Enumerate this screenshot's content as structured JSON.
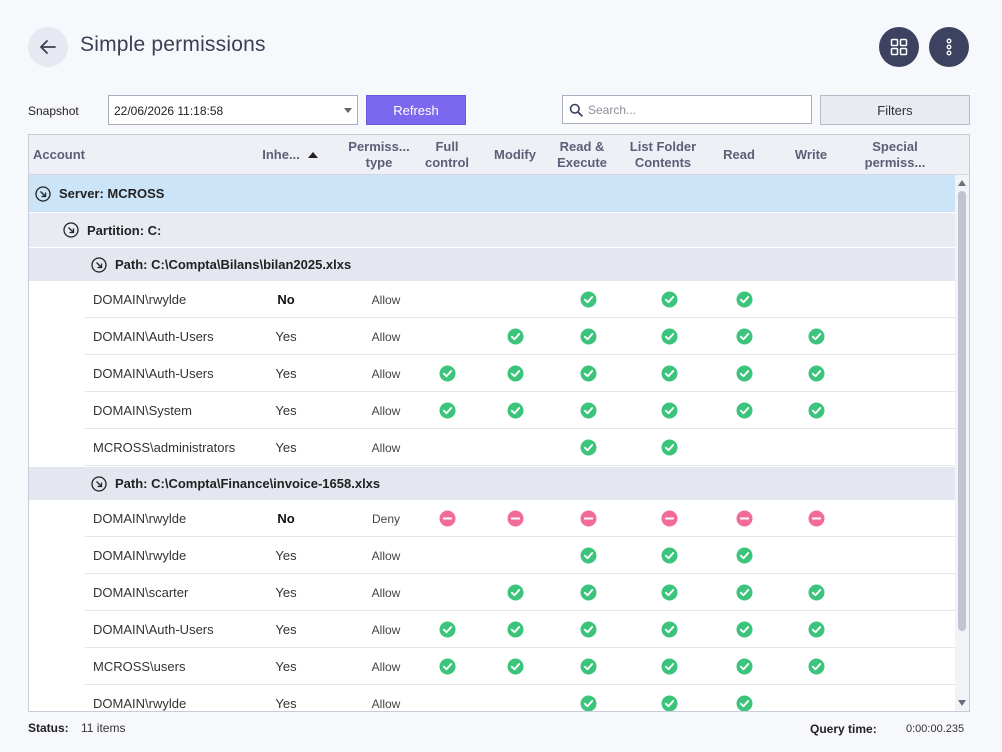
{
  "header": {
    "title": "Simple permissions"
  },
  "toolbar": {
    "snapshot_label": "Snapshot",
    "snapshot_value": "22/06/2026 11:18:58",
    "refresh_label": "Refresh",
    "search_placeholder": "Search...",
    "filters_label": "Filters"
  },
  "columns": {
    "account": "Account",
    "inherited": "Inhe...",
    "perm_type_1": "Permiss...",
    "perm_type_2": "type",
    "full_control_1": "Full",
    "full_control_2": "control",
    "modify": "Modify",
    "read_execute_1": "Read &",
    "read_execute_2": "Execute",
    "list_folder_1": "List Folder",
    "list_folder_2": "Contents",
    "read": "Read",
    "write": "Write",
    "special_1": "Special",
    "special_2": "permiss..."
  },
  "groups": {
    "server": "Server: MCROSS",
    "partition": "Partition: C:",
    "path1": "Path: C:\\Compta\\Bilans\\bilan2025.xlxs",
    "path2": "Path: C:\\Compta\\Finance\\invoice-1658.xlxs"
  },
  "rows": [
    {
      "account": "DOMAIN\\rwylde",
      "inherited": "No",
      "type": "Allow",
      "perms": [
        "",
        "",
        "allow",
        "allow",
        "allow",
        "",
        ""
      ]
    },
    {
      "account": "DOMAIN\\Auth-Users",
      "inherited": "Yes",
      "type": "Allow",
      "perms": [
        "",
        "allow",
        "allow",
        "allow",
        "allow",
        "allow",
        ""
      ]
    },
    {
      "account": "DOMAIN\\Auth-Users",
      "inherited": "Yes",
      "type": "Allow",
      "perms": [
        "allow",
        "allow",
        "allow",
        "allow",
        "allow",
        "allow",
        ""
      ]
    },
    {
      "account": "DOMAIN\\System",
      "inherited": "Yes",
      "type": "Allow",
      "perms": [
        "allow",
        "allow",
        "allow",
        "allow",
        "allow",
        "allow",
        ""
      ]
    },
    {
      "account": "MCROSS\\administrators",
      "inherited": "Yes",
      "type": "Allow",
      "perms": [
        "",
        "",
        "allow",
        "allow",
        "",
        "",
        ""
      ]
    },
    {
      "account": "DOMAIN\\rwylde",
      "inherited": "No",
      "type": "Deny",
      "perms": [
        "deny",
        "deny",
        "deny",
        "deny",
        "deny",
        "deny",
        ""
      ]
    },
    {
      "account": "DOMAIN\\rwylde",
      "inherited": "Yes",
      "type": "Allow",
      "perms": [
        "",
        "",
        "allow",
        "allow",
        "allow",
        "",
        ""
      ]
    },
    {
      "account": "DOMAIN\\scarter",
      "inherited": "Yes",
      "type": "Allow",
      "perms": [
        "",
        "allow",
        "allow",
        "allow",
        "allow",
        "allow",
        ""
      ]
    },
    {
      "account": "DOMAIN\\Auth-Users",
      "inherited": "Yes",
      "type": "Allow",
      "perms": [
        "allow",
        "allow",
        "allow",
        "allow",
        "allow",
        "allow",
        ""
      ]
    },
    {
      "account": "MCROSS\\users",
      "inherited": "Yes",
      "type": "Allow",
      "perms": [
        "allow",
        "allow",
        "allow",
        "allow",
        "allow",
        "allow",
        ""
      ]
    },
    {
      "account": "DOMAIN\\rwylde",
      "inherited": "Yes",
      "type": "Allow",
      "perms": [
        "",
        "",
        "allow",
        "allow",
        "allow",
        "",
        ""
      ]
    }
  ],
  "status": {
    "label": "Status:",
    "value": "11 items",
    "query_label": "Query time:",
    "query_value": "0:00:00.235"
  },
  "icons": {
    "back": "arrow-left-icon",
    "grid": "grid-icon",
    "more": "more-vertical-icon",
    "search": "search-icon",
    "allow": "check-circle-icon",
    "deny": "minus-circle-icon"
  },
  "colors": {
    "accent": "#7b68ee",
    "allow": "#3cc47c",
    "deny": "#f06a9a",
    "server_row": "#cce4f7",
    "round_button": "#3d4260"
  }
}
